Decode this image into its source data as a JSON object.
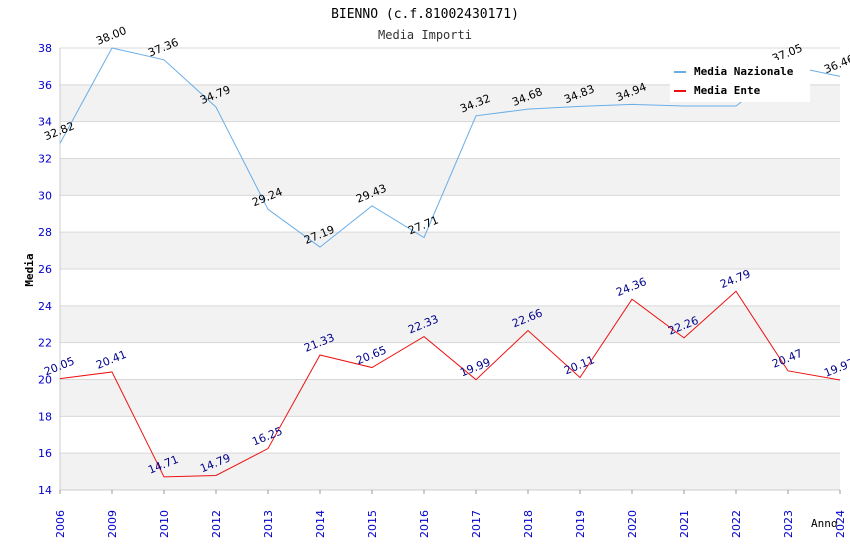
{
  "chart_data": {
    "type": "line",
    "title": "BIENNO (c.f.81002430171)",
    "subtitle": "Media Importi",
    "xlabel": "Anno",
    "ylabel": "Media",
    "categories": [
      "2006",
      "2009",
      "2010",
      "2012",
      "2013",
      "2014",
      "2015",
      "2016",
      "2017",
      "2018",
      "2019",
      "2020",
      "2021",
      "2022",
      "2023",
      "2024"
    ],
    "ylim": [
      14,
      38
    ],
    "yticks": [
      14,
      16,
      18,
      20,
      22,
      24,
      26,
      28,
      30,
      32,
      34,
      36,
      38
    ],
    "grid": true,
    "legend_position": "top-right",
    "series": [
      {
        "name": "Media Nazionale",
        "color": "#6aaee8",
        "label_color": "#000000",
        "values": [
          32.82,
          38.0,
          37.36,
          34.79,
          29.24,
          27.19,
          29.43,
          27.71,
          34.32,
          34.68,
          34.83,
          34.94,
          null,
          null,
          37.05,
          36.46
        ],
        "line_values": [
          32.82,
          38.0,
          37.36,
          34.79,
          29.24,
          27.19,
          29.43,
          27.71,
          34.32,
          34.68,
          34.83,
          34.94,
          34.85,
          34.85,
          37.05,
          36.46
        ],
        "labels": [
          "32.82",
          "38.00",
          "37.36",
          "34.79",
          "29.24",
          "27.19",
          "29.43",
          "27.71",
          "34.32",
          "34.68",
          "34.83",
          "34.94",
          "",
          "",
          "37.05",
          "36.46"
        ]
      },
      {
        "name": "Media Ente",
        "color": "#ee1111",
        "label_color": "#00008b",
        "values": [
          20.05,
          20.41,
          14.71,
          14.79,
          16.25,
          21.33,
          20.65,
          22.33,
          19.99,
          22.66,
          20.11,
          24.36,
          22.26,
          24.79,
          20.47,
          19.97
        ],
        "line_values": [
          20.05,
          20.41,
          14.71,
          14.79,
          16.25,
          21.33,
          20.65,
          22.33,
          19.99,
          22.66,
          20.11,
          24.36,
          22.26,
          24.79,
          20.47,
          19.97
        ],
        "labels": [
          "20.05",
          "20.41",
          "14.71",
          "14.79",
          "16.25",
          "21.33",
          "20.65",
          "22.33",
          "19.99",
          "22.66",
          "20.11",
          "24.36",
          "22.26",
          "24.79",
          "20.47",
          "19.97"
        ]
      }
    ]
  },
  "colors": {
    "axis_text": "#0000cc",
    "band": "#f2f2f2",
    "grid": "#d8d8d8",
    "title": "#000000",
    "subtitle": "#333333"
  }
}
